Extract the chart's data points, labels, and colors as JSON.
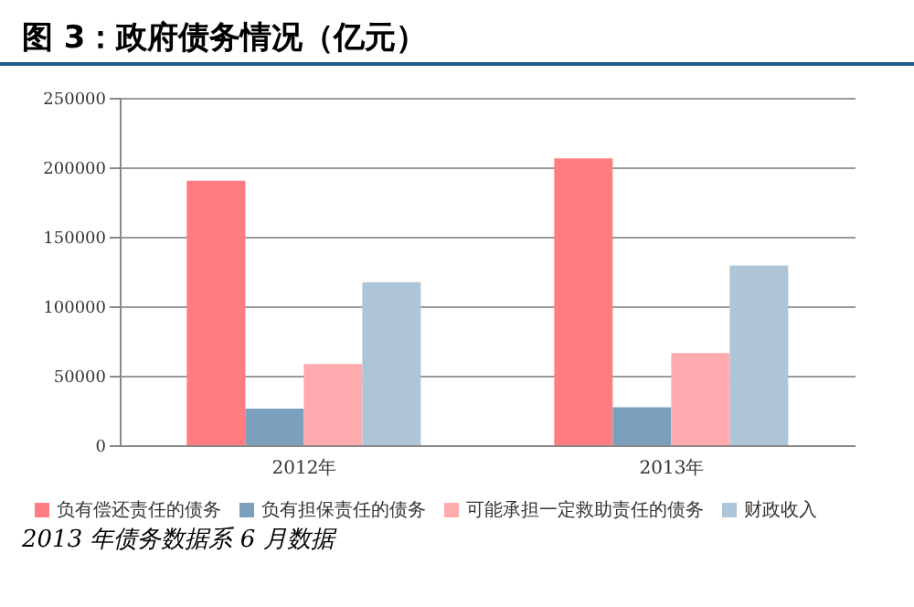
{
  "chart_data": {
    "type": "bar",
    "title": "图 3：政府债务情况（亿元）",
    "categories": [
      "2012年",
      "2013年"
    ],
    "series": [
      {
        "name": "负有偿还责任的债务",
        "color": "#ff7c80",
        "values": [
          191000,
          207000
        ]
      },
      {
        "name": "负有担保责任的债务",
        "color": "#7ba0bd",
        "values": [
          27000,
          28000
        ]
      },
      {
        "name": "可能承担一定救助责任的债务",
        "color": "#ffabae",
        "values": [
          59000,
          67000
        ]
      },
      {
        "name": "财政收入",
        "color": "#adc5d6",
        "values": [
          118000,
          130000
        ]
      }
    ],
    "ylim": [
      0,
      250000
    ],
    "yticks": [
      0,
      50000,
      100000,
      150000,
      200000,
      250000
    ],
    "grid": "y",
    "legend": "bottom",
    "annotations": [
      "2013 年债务数据系 6 月数据"
    ]
  }
}
